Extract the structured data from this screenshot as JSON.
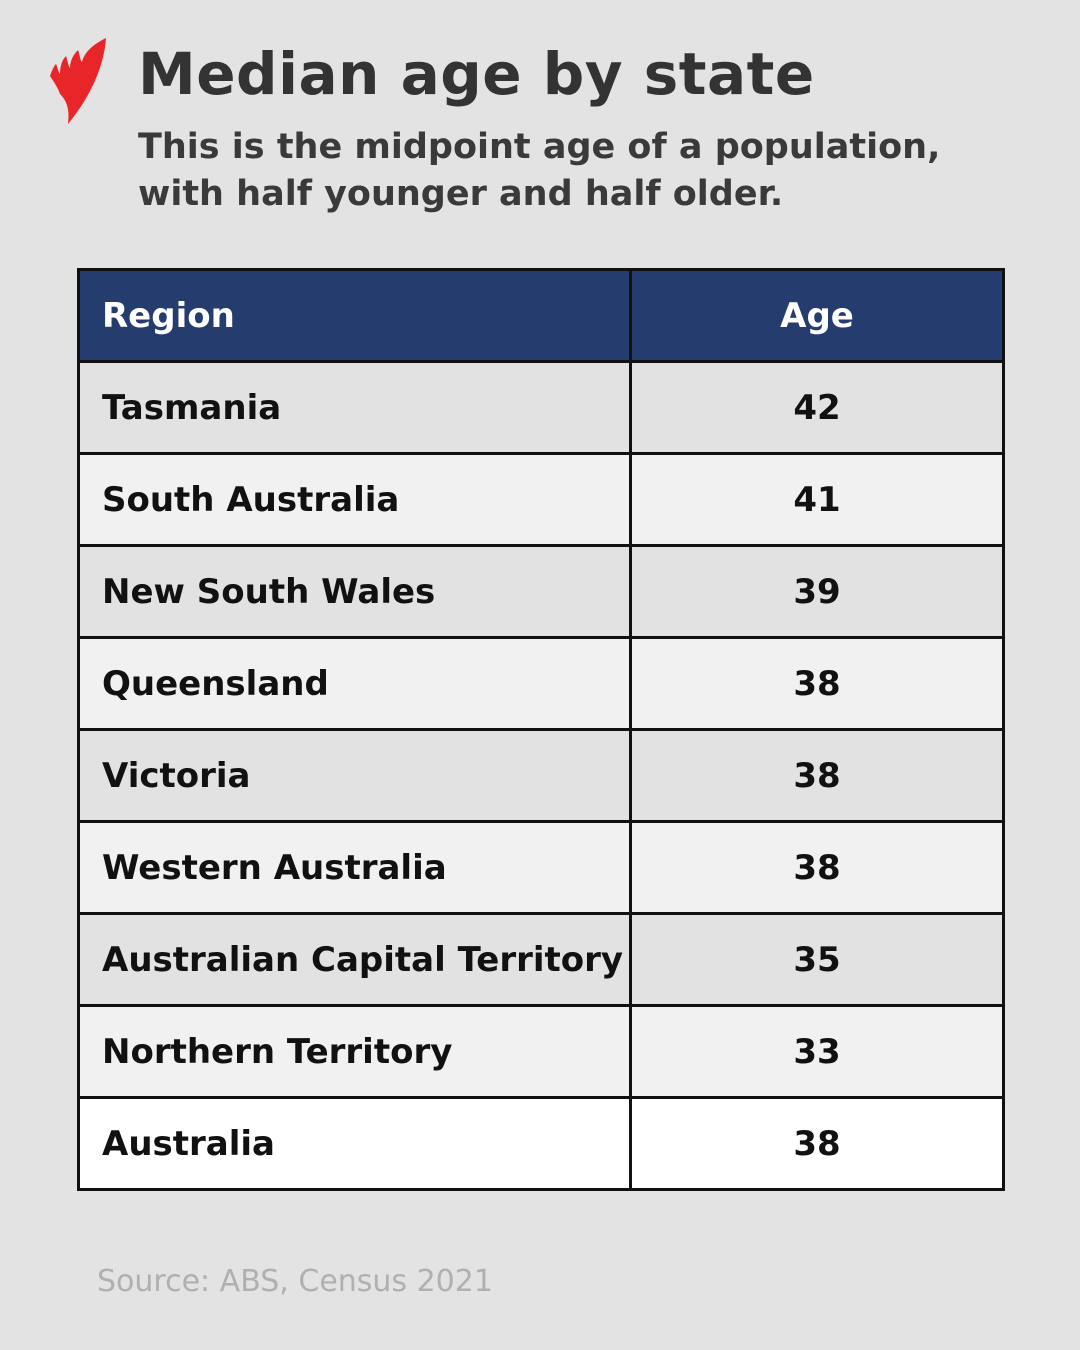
{
  "header": {
    "title": "Median age by state",
    "subtitle": "This is the midpoint age of a population, with half younger and half older.",
    "logo": "SBS-logo",
    "logo_color": "#e8262a"
  },
  "chart_data": {
    "type": "table",
    "columns": [
      "Region",
      "Age"
    ],
    "header_color": "#253d6e",
    "rows": [
      {
        "region": "Tasmania",
        "age": "42"
      },
      {
        "region": "South Australia",
        "age": "41"
      },
      {
        "region": "New South Wales",
        "age": "39"
      },
      {
        "region": "Queensland",
        "age": "38"
      },
      {
        "region": "Victoria",
        "age": "38"
      },
      {
        "region": "Western Australia",
        "age": "38"
      },
      {
        "region": "Australian Capital Territory",
        "age": "35"
      },
      {
        "region": "Northern Territory",
        "age": "33"
      },
      {
        "region": "Australia",
        "age": "38"
      }
    ]
  },
  "footer": {
    "source": "Source: ABS, Census 2021"
  }
}
